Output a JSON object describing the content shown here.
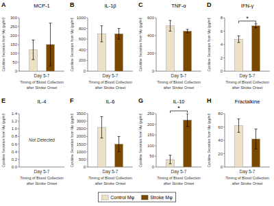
{
  "chart_data": [
    {
      "type": "bar",
      "label": "A",
      "title": "MCP-1",
      "categories": [
        "Day 5-7"
      ],
      "xlabel": "Timing of Blood Collection\nafter Stroke Onset",
      "ylabel": "Cytokine Secretion from Mφ (pg/ml)",
      "series": [
        {
          "name": "Control Mφ",
          "color": "#EDE0C4",
          "values": [
            120
          ],
          "errors": [
            55
          ]
        },
        {
          "name": "Stroke Mφ",
          "color": "#7B4800",
          "values": [
            150
          ],
          "errors": [
            120
          ]
        }
      ],
      "ylim": [
        0,
        300
      ],
      "yticks": [
        0,
        50,
        100,
        150,
        200,
        250,
        300
      ],
      "legend": "bottom"
    },
    {
      "type": "bar",
      "label": "B",
      "title": "IL-1β",
      "categories": [
        "Day 5-7"
      ],
      "xlabel": "Timing of Blood Collection\nafter Stroke Onset",
      "ylabel": "Cytokine Secretion from Mφ (pg/ml)",
      "series": [
        {
          "name": "Control Mφ",
          "color": "#EDE0C4",
          "values": [
            700
          ],
          "errors": [
            150
          ]
        },
        {
          "name": "Stroke Mφ",
          "color": "#7B4800",
          "values": [
            700
          ],
          "errors": [
            100
          ]
        }
      ],
      "ylim": [
        0,
        1000
      ],
      "yticks": [
        0,
        200,
        400,
        600,
        800,
        1000
      ]
    },
    {
      "type": "bar",
      "label": "C",
      "title": "TNF-α",
      "categories": [
        "Day 5-7"
      ],
      "xlabel": "Timing of Blood Collection\nafter Stroke Onset",
      "ylabel": "Cytokine Secretion from Mφ (pg/ml)",
      "series": [
        {
          "name": "Control Mφ",
          "color": "#EDE0C4",
          "values": [
            510
          ],
          "errors": [
            60
          ]
        },
        {
          "name": "Stroke Mφ",
          "color": "#7B4800",
          "values": [
            450
          ],
          "errors": [
            20
          ]
        }
      ],
      "ylim": [
        0,
        600
      ],
      "yticks": [
        0,
        200,
        400,
        600
      ]
    },
    {
      "type": "bar",
      "label": "D",
      "title": "IFN-γ",
      "categories": [
        "Day 5-7"
      ],
      "xlabel": "Timing of Blood Collection\nafter Stroke Onset",
      "ylabel": "Cytokine Secretion from Mφ (pg/ml)",
      "series": [
        {
          "name": "Control Mφ",
          "color": "#EDE0C4",
          "values": [
            4.8
          ],
          "errors": [
            0.5
          ]
        },
        {
          "name": "Stroke Mφ",
          "color": "#7B4800",
          "values": [
            6.8
          ],
          "errors": [
            0.3
          ]
        }
      ],
      "ylim": [
        0,
        8
      ],
      "yticks": [
        0,
        2,
        4,
        6,
        8
      ],
      "annotations": [
        {
          "text": "*"
        }
      ]
    },
    {
      "type": "bar",
      "label": "E",
      "title": "IL-4",
      "categories": [
        "Day 5-7"
      ],
      "xlabel": "Timing of Blood Collection\nafter Stroke Onset",
      "ylabel": "Cytokine Secretion from Mφ (pg/ml)",
      "series": [
        {
          "name": "Control Mφ",
          "color": "#EDE0C4",
          "values": [
            null
          ],
          "errors": [
            null
          ]
        },
        {
          "name": "Stroke Mφ",
          "color": "#7B4800",
          "values": [
            null
          ],
          "errors": [
            null
          ]
        }
      ],
      "ylim": [
        0,
        1.4
      ],
      "yticks": [
        {
          "value": 0,
          "label": "0.0"
        },
        0.2,
        0.4,
        0.6,
        0.8,
        {
          "value": 1,
          "label": "1.0"
        },
        1.2,
        1.4
      ],
      "annotations": [
        {
          "text": "Not Detected"
        }
      ]
    },
    {
      "type": "bar",
      "label": "F",
      "title": "IL-6",
      "categories": [
        "Day 5-7"
      ],
      "xlabel": "Timing of Blood Collection\nafter Stroke Onset",
      "ylabel": "Cytokine Secretion from Mφ (pg/ml)",
      "series": [
        {
          "name": "Control Mφ",
          "color": "#EDE0C4",
          "values": [
            2600
          ],
          "errors": [
            700
          ]
        },
        {
          "name": "Stroke Mφ",
          "color": "#7B4800",
          "values": [
            1500
          ],
          "errors": [
            500
          ]
        }
      ],
      "ylim": [
        0,
        3500
      ],
      "yticks": [
        0,
        500,
        1000,
        1500,
        2000,
        2500,
        3000,
        3500
      ]
    },
    {
      "type": "bar",
      "label": "G",
      "title": "IL-10",
      "categories": [
        "Day 5-7"
      ],
      "xlabel": "Timing of Blood Collection\nafter Stroke Onset",
      "ylabel": "Cytokine Secretion from Mφ (pg/ml)",
      "series": [
        {
          "name": "Control Mφ",
          "color": "#EDE0C4",
          "values": [
            35
          ],
          "errors": [
            20
          ]
        },
        {
          "name": "Stroke Mφ",
          "color": "#7B4800",
          "values": [
            220
          ],
          "errors": [
            30
          ]
        }
      ],
      "ylim": [
        0,
        250
      ],
      "yticks": [
        0,
        50,
        100,
        150,
        200,
        250
      ],
      "annotations": [
        {
          "text": "*"
        }
      ]
    },
    {
      "type": "bar",
      "label": "H",
      "title": "Fractalkine",
      "categories": [
        "Day 5-7"
      ],
      "xlabel": "Timing of Blood Collection\nafter Stroke Onset",
      "ylabel": "Cytokine Secretion from Mφ (pg/ml)",
      "series": [
        {
          "name": "Control Mφ",
          "color": "#EDE0C4",
          "values": [
            62
          ],
          "errors": [
            10
          ]
        },
        {
          "name": "Stroke Mφ",
          "color": "#7B4800",
          "values": [
            42
          ],
          "errors": [
            15
          ]
        }
      ],
      "ylim": [
        0,
        80
      ],
      "yticks": [
        0,
        20,
        40,
        60,
        80
      ]
    }
  ]
}
